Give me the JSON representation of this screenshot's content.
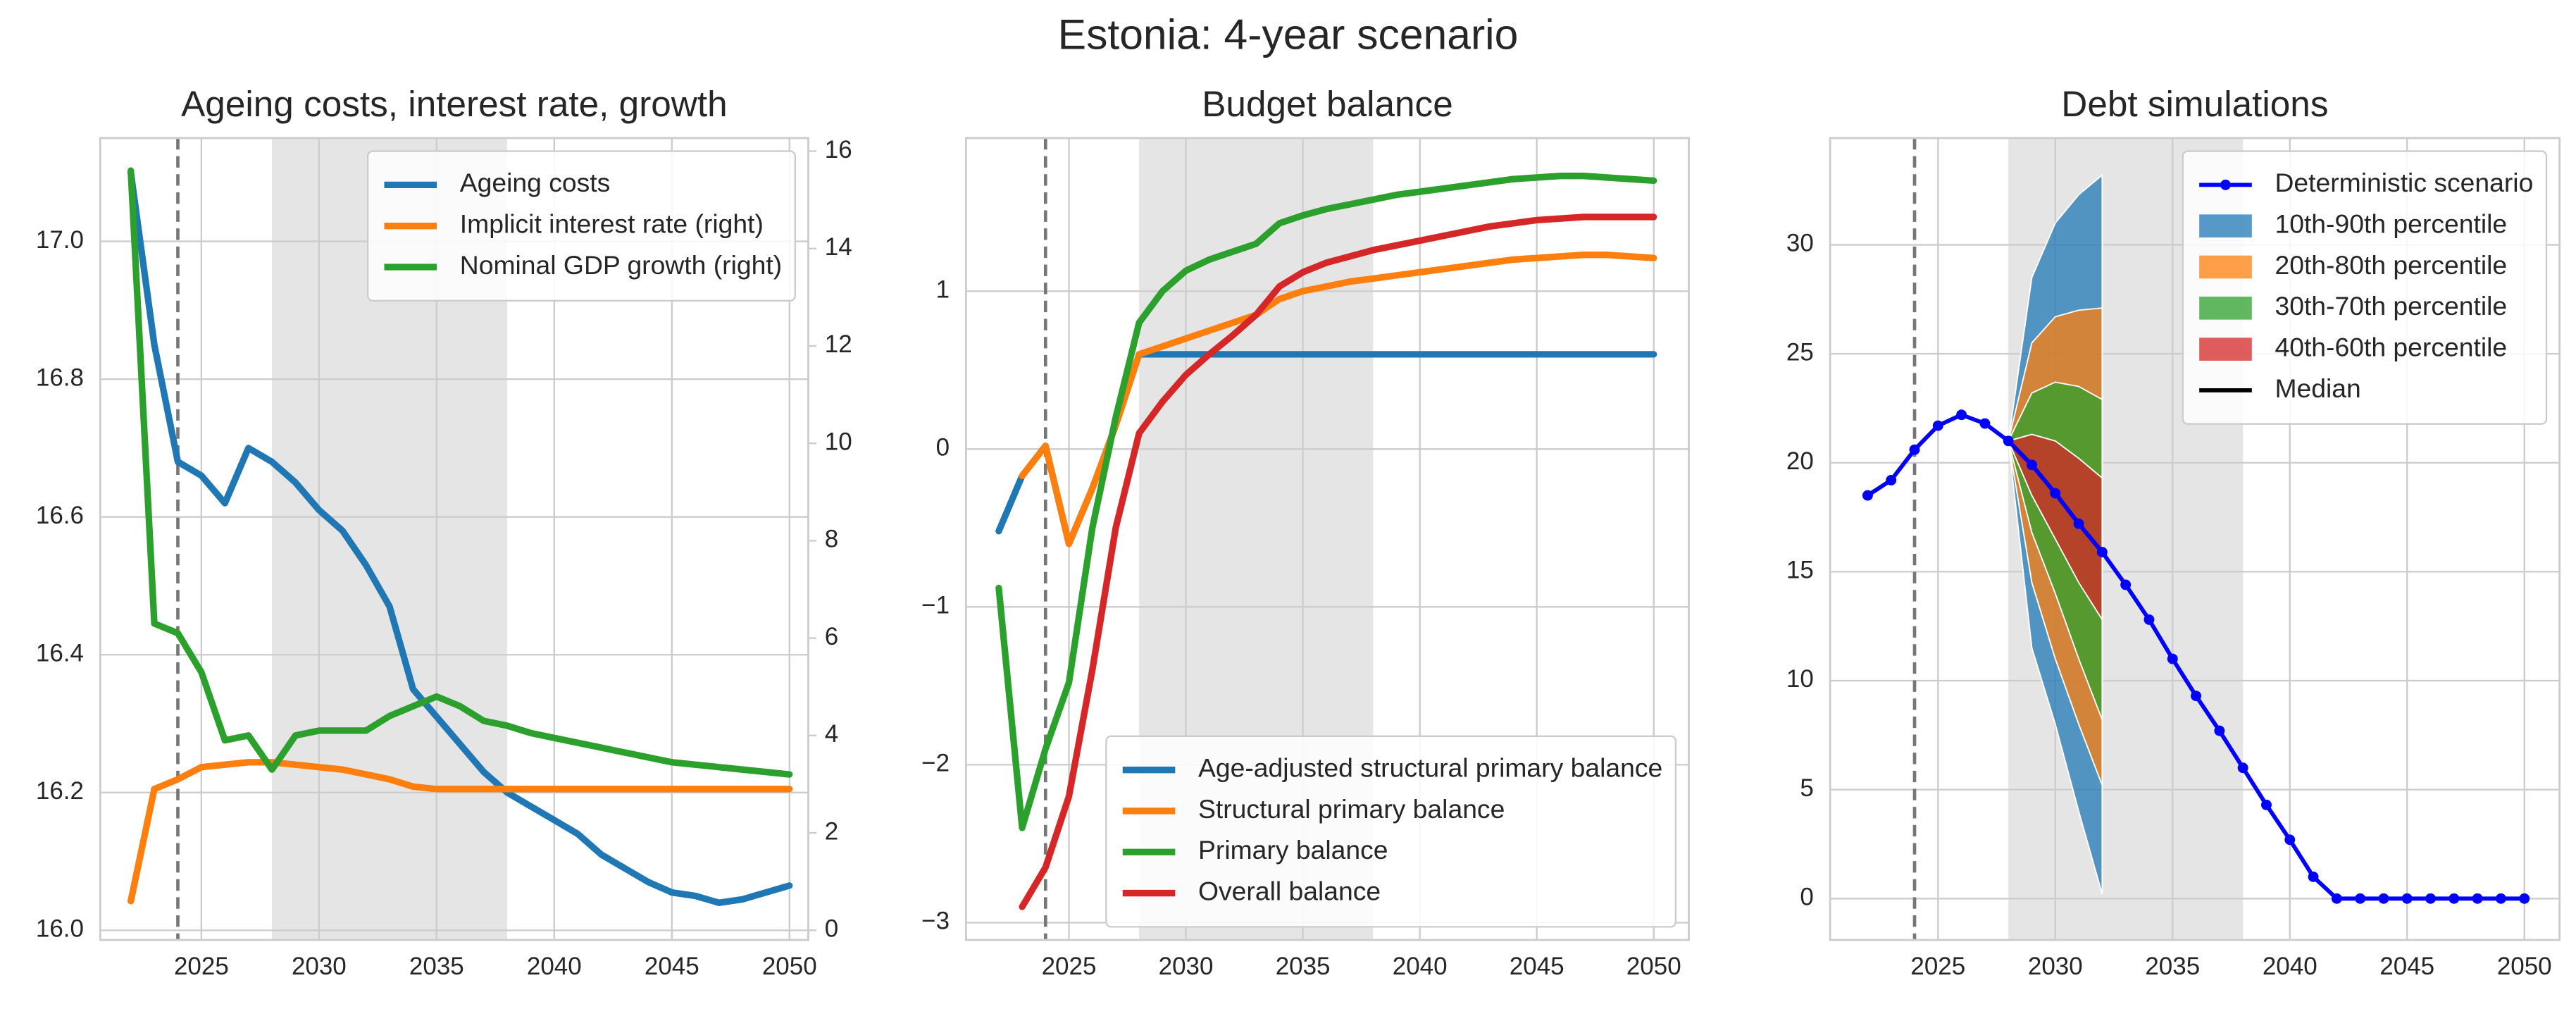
{
  "title": "Estonia: 4-year scenario",
  "chart_data": [
    {
      "type": "line",
      "title": "Ageing costs, interest rate, growth",
      "x": [
        2022,
        2023,
        2024,
        2025,
        2026,
        2027,
        2028,
        2029,
        2030,
        2031,
        2032,
        2033,
        2034,
        2035,
        2036,
        2037,
        2038,
        2039,
        2040,
        2041,
        2042,
        2043,
        2044,
        2045,
        2046,
        2047,
        2048,
        2049,
        2050
      ],
      "xlim": [
        2020.7,
        2050.8
      ],
      "xticks": [
        2025,
        2030,
        2035,
        2040,
        2045,
        2050
      ],
      "ylim": [
        15.986,
        17.15
      ],
      "yticks": [
        {
          "value": 16.0,
          "label": "16.0"
        },
        16.2,
        16.4,
        16.6,
        16.8,
        {
          "value": 17.0,
          "label": "17.0"
        }
      ],
      "y2lim": [
        -0.2,
        16.27
      ],
      "y2ticks": [
        0,
        2,
        4,
        6,
        8,
        10,
        12,
        14,
        16
      ],
      "grid": true,
      "shade": [
        2028,
        2038
      ],
      "vline": 2024,
      "legend": "upper right",
      "series": [
        {
          "name": "Ageing costs",
          "color": "#1f77b4",
          "axis": "y",
          "values": [
            17.1,
            16.85,
            16.68,
            16.66,
            16.62,
            16.7,
            16.68,
            16.65,
            16.61,
            16.58,
            16.53,
            16.47,
            16.35,
            16.31,
            16.27,
            16.23,
            16.2,
            16.18,
            16.16,
            16.14,
            16.11,
            16.09,
            16.07,
            16.055,
            16.05,
            16.04,
            16.045,
            16.055,
            16.065
          ]
        },
        {
          "name": "Implicit interest rate (right)",
          "color": "#ff7f0e",
          "axis": "y2",
          "values": [
            0.6,
            2.9,
            3.1,
            3.35,
            3.4,
            3.45,
            3.45,
            3.4,
            3.35,
            3.3,
            3.2,
            3.1,
            2.95,
            2.9,
            2.9,
            2.9,
            2.9,
            2.9,
            2.9,
            2.9,
            2.9,
            2.9,
            2.9,
            2.9,
            2.9,
            2.9,
            2.9,
            2.9,
            2.9
          ]
        },
        {
          "name": "Nominal GDP growth (right)",
          "color": "#2ca02c",
          "axis": "y2",
          "values": [
            15.6,
            6.3,
            6.1,
            5.3,
            3.9,
            4.0,
            3.3,
            4.0,
            4.1,
            4.1,
            4.1,
            4.4,
            4.6,
            4.8,
            4.6,
            4.3,
            4.2,
            4.05,
            3.95,
            3.85,
            3.75,
            3.65,
            3.55,
            3.45,
            3.4,
            3.35,
            3.3,
            3.25,
            3.2
          ]
        }
      ]
    },
    {
      "type": "line",
      "title": "Budget balance",
      "x": [
        2022,
        2023,
        2024,
        2025,
        2026,
        2027,
        2028,
        2029,
        2030,
        2031,
        2032,
        2033,
        2034,
        2035,
        2036,
        2037,
        2038,
        2039,
        2040,
        2041,
        2042,
        2043,
        2044,
        2045,
        2046,
        2047,
        2048,
        2049,
        2050
      ],
      "xlim": [
        2020.6,
        2051.5
      ],
      "xticks": [
        2025,
        2030,
        2035,
        2040,
        2045,
        2050
      ],
      "ylim": [
        -3.11,
        1.97
      ],
      "yticks": [
        {
          "value": -3,
          "label": "−3"
        },
        {
          "value": -2,
          "label": "−2"
        },
        {
          "value": -1,
          "label": "−1"
        },
        0,
        1
      ],
      "grid": true,
      "shade": [
        2028,
        2038
      ],
      "vline": 2024,
      "legend": "lower right",
      "series": [
        {
          "name": "Age-adjusted structural primary balance",
          "color": "#1f77b4",
          "values": [
            -0.52,
            -0.17,
            0.02,
            -0.6,
            -0.25,
            0.15,
            0.6,
            0.6,
            0.6,
            0.6,
            0.6,
            0.6,
            0.6,
            0.6,
            0.6,
            0.6,
            0.6,
            0.6,
            0.6,
            0.6,
            0.6,
            0.6,
            0.6,
            0.6,
            0.6,
            0.6,
            0.6,
            0.6,
            0.6
          ]
        },
        {
          "name": "Structural primary balance",
          "color": "#ff7f0e",
          "values": [
            null,
            -0.17,
            0.02,
            -0.6,
            -0.25,
            0.15,
            0.6,
            0.65,
            0.7,
            0.75,
            0.8,
            0.85,
            0.95,
            1.0,
            1.03,
            1.06,
            1.08,
            1.1,
            1.12,
            1.14,
            1.16,
            1.18,
            1.2,
            1.21,
            1.22,
            1.23,
            1.23,
            1.22,
            1.21
          ]
        },
        {
          "name": "Primary balance",
          "color": "#2ca02c",
          "values": [
            -0.88,
            -2.4,
            -1.9,
            -1.48,
            -0.5,
            0.2,
            0.8,
            1.0,
            1.13,
            1.2,
            1.25,
            1.3,
            1.43,
            1.48,
            1.52,
            1.55,
            1.58,
            1.61,
            1.63,
            1.65,
            1.67,
            1.69,
            1.71,
            1.72,
            1.73,
            1.73,
            1.72,
            1.71,
            1.7
          ]
        },
        {
          "name": "Overall balance",
          "color": "#d62728",
          "values": [
            null,
            -2.9,
            -2.65,
            -2.2,
            -1.4,
            -0.5,
            0.1,
            0.3,
            0.47,
            0.6,
            0.72,
            0.85,
            1.03,
            1.12,
            1.18,
            1.22,
            1.26,
            1.29,
            1.32,
            1.35,
            1.38,
            1.41,
            1.43,
            1.45,
            1.46,
            1.47,
            1.47,
            1.47,
            1.47
          ]
        }
      ]
    },
    {
      "type": "fan",
      "title": "Debt simulations",
      "x": [
        2022,
        2023,
        2024,
        2025,
        2026,
        2027,
        2028,
        2029,
        2030,
        2031,
        2032,
        2033,
        2034,
        2035,
        2036,
        2037,
        2038,
        2039,
        2040,
        2041,
        2042,
        2043,
        2044,
        2045,
        2046,
        2047,
        2048,
        2049,
        2050
      ],
      "xlim": [
        2020.4,
        2051.5
      ],
      "xticks": [
        2025,
        2030,
        2035,
        2040,
        2045,
        2050
      ],
      "ylim": [
        -1.9,
        34.9
      ],
      "yticks": [
        0,
        5,
        10,
        15,
        20,
        25,
        30
      ],
      "grid": true,
      "shade": [
        2028,
        2038
      ],
      "vline": 2024,
      "legend": "upper right",
      "series": [
        {
          "name": "Deterministic scenario",
          "color": "#0000ff",
          "marker": true,
          "values": [
            18.5,
            19.2,
            20.6,
            21.7,
            22.2,
            21.8,
            21.0,
            19.9,
            18.6,
            17.2,
            15.9,
            14.4,
            12.8,
            11.0,
            9.3,
            7.7,
            6.0,
            4.3,
            2.7,
            1.0,
            0,
            0,
            0,
            0,
            0,
            0,
            0,
            0,
            0
          ]
        }
      ],
      "fan_x": [
        2028,
        2029,
        2030,
        2031,
        2032
      ],
      "fan": [
        {
          "name": "10th-90th percentile",
          "color": "#1f77b4",
          "lower": [
            21.0,
            11.5,
            8.0,
            4.0,
            0.2
          ],
          "upper": [
            21.0,
            28.5,
            31.0,
            32.3,
            33.2
          ]
        },
        {
          "name": "20th-80th percentile",
          "color": "#ff7f0e",
          "lower": [
            21.0,
            14.5,
            11.0,
            8.0,
            5.2
          ],
          "upper": [
            21.0,
            25.5,
            26.7,
            27.0,
            27.1
          ]
        },
        {
          "name": "30th-70th percentile",
          "color": "#2ca02c",
          "lower": [
            21.0,
            16.8,
            14.0,
            11.0,
            8.2
          ],
          "upper": [
            21.0,
            23.2,
            23.7,
            23.5,
            22.9
          ]
        },
        {
          "name": "40th-60th percentile",
          "color": "#d62728",
          "lower": [
            21.0,
            18.5,
            16.5,
            14.5,
            12.8
          ],
          "upper": [
            21.0,
            21.3,
            21.0,
            20.2,
            19.3
          ]
        }
      ],
      "median": {
        "name": "Median",
        "color": "#000000",
        "values": [
          21.0,
          19.9,
          18.6,
          17.2,
          15.9
        ]
      }
    }
  ]
}
